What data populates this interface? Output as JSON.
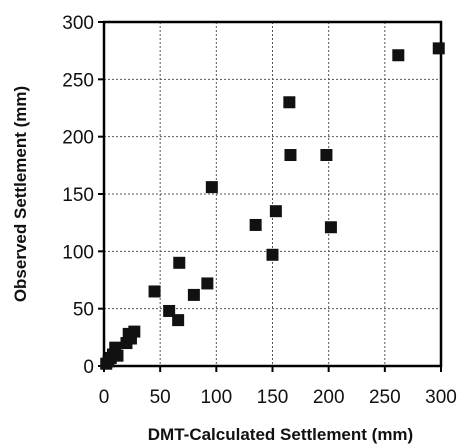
{
  "chart_data": {
    "type": "scatter",
    "title": "",
    "xlabel": "DMT-Calculated Settlement (mm)",
    "ylabel": "Observed Settlement (mm)",
    "xlim": [
      0,
      300
    ],
    "ylim": [
      0,
      300
    ],
    "xticks": [
      "0",
      "50",
      "100",
      "150",
      "200",
      "250",
      "300"
    ],
    "yticks": [
      "0",
      "50",
      "100",
      "150",
      "200",
      "250",
      "300"
    ],
    "grid": true,
    "marker": "square",
    "marker_color": "#111111",
    "series": [
      {
        "points": [
          [
            2,
            2
          ],
          [
            4,
            4
          ],
          [
            6,
            7
          ],
          [
            8,
            10
          ],
          [
            10,
            16
          ],
          [
            12,
            9
          ],
          [
            20,
            20
          ],
          [
            22,
            28
          ],
          [
            24,
            24
          ],
          [
            27,
            30
          ],
          [
            45,
            65
          ],
          [
            58,
            48
          ],
          [
            66,
            40
          ],
          [
            67,
            90
          ],
          [
            80,
            62
          ],
          [
            92,
            72
          ],
          [
            96,
            156
          ],
          [
            135,
            123
          ],
          [
            150,
            97
          ],
          [
            153,
            135
          ],
          [
            165,
            230
          ],
          [
            166,
            184
          ],
          [
            198,
            184
          ],
          [
            202,
            121
          ],
          [
            262,
            271
          ],
          [
            298,
            277
          ]
        ]
      }
    ]
  }
}
